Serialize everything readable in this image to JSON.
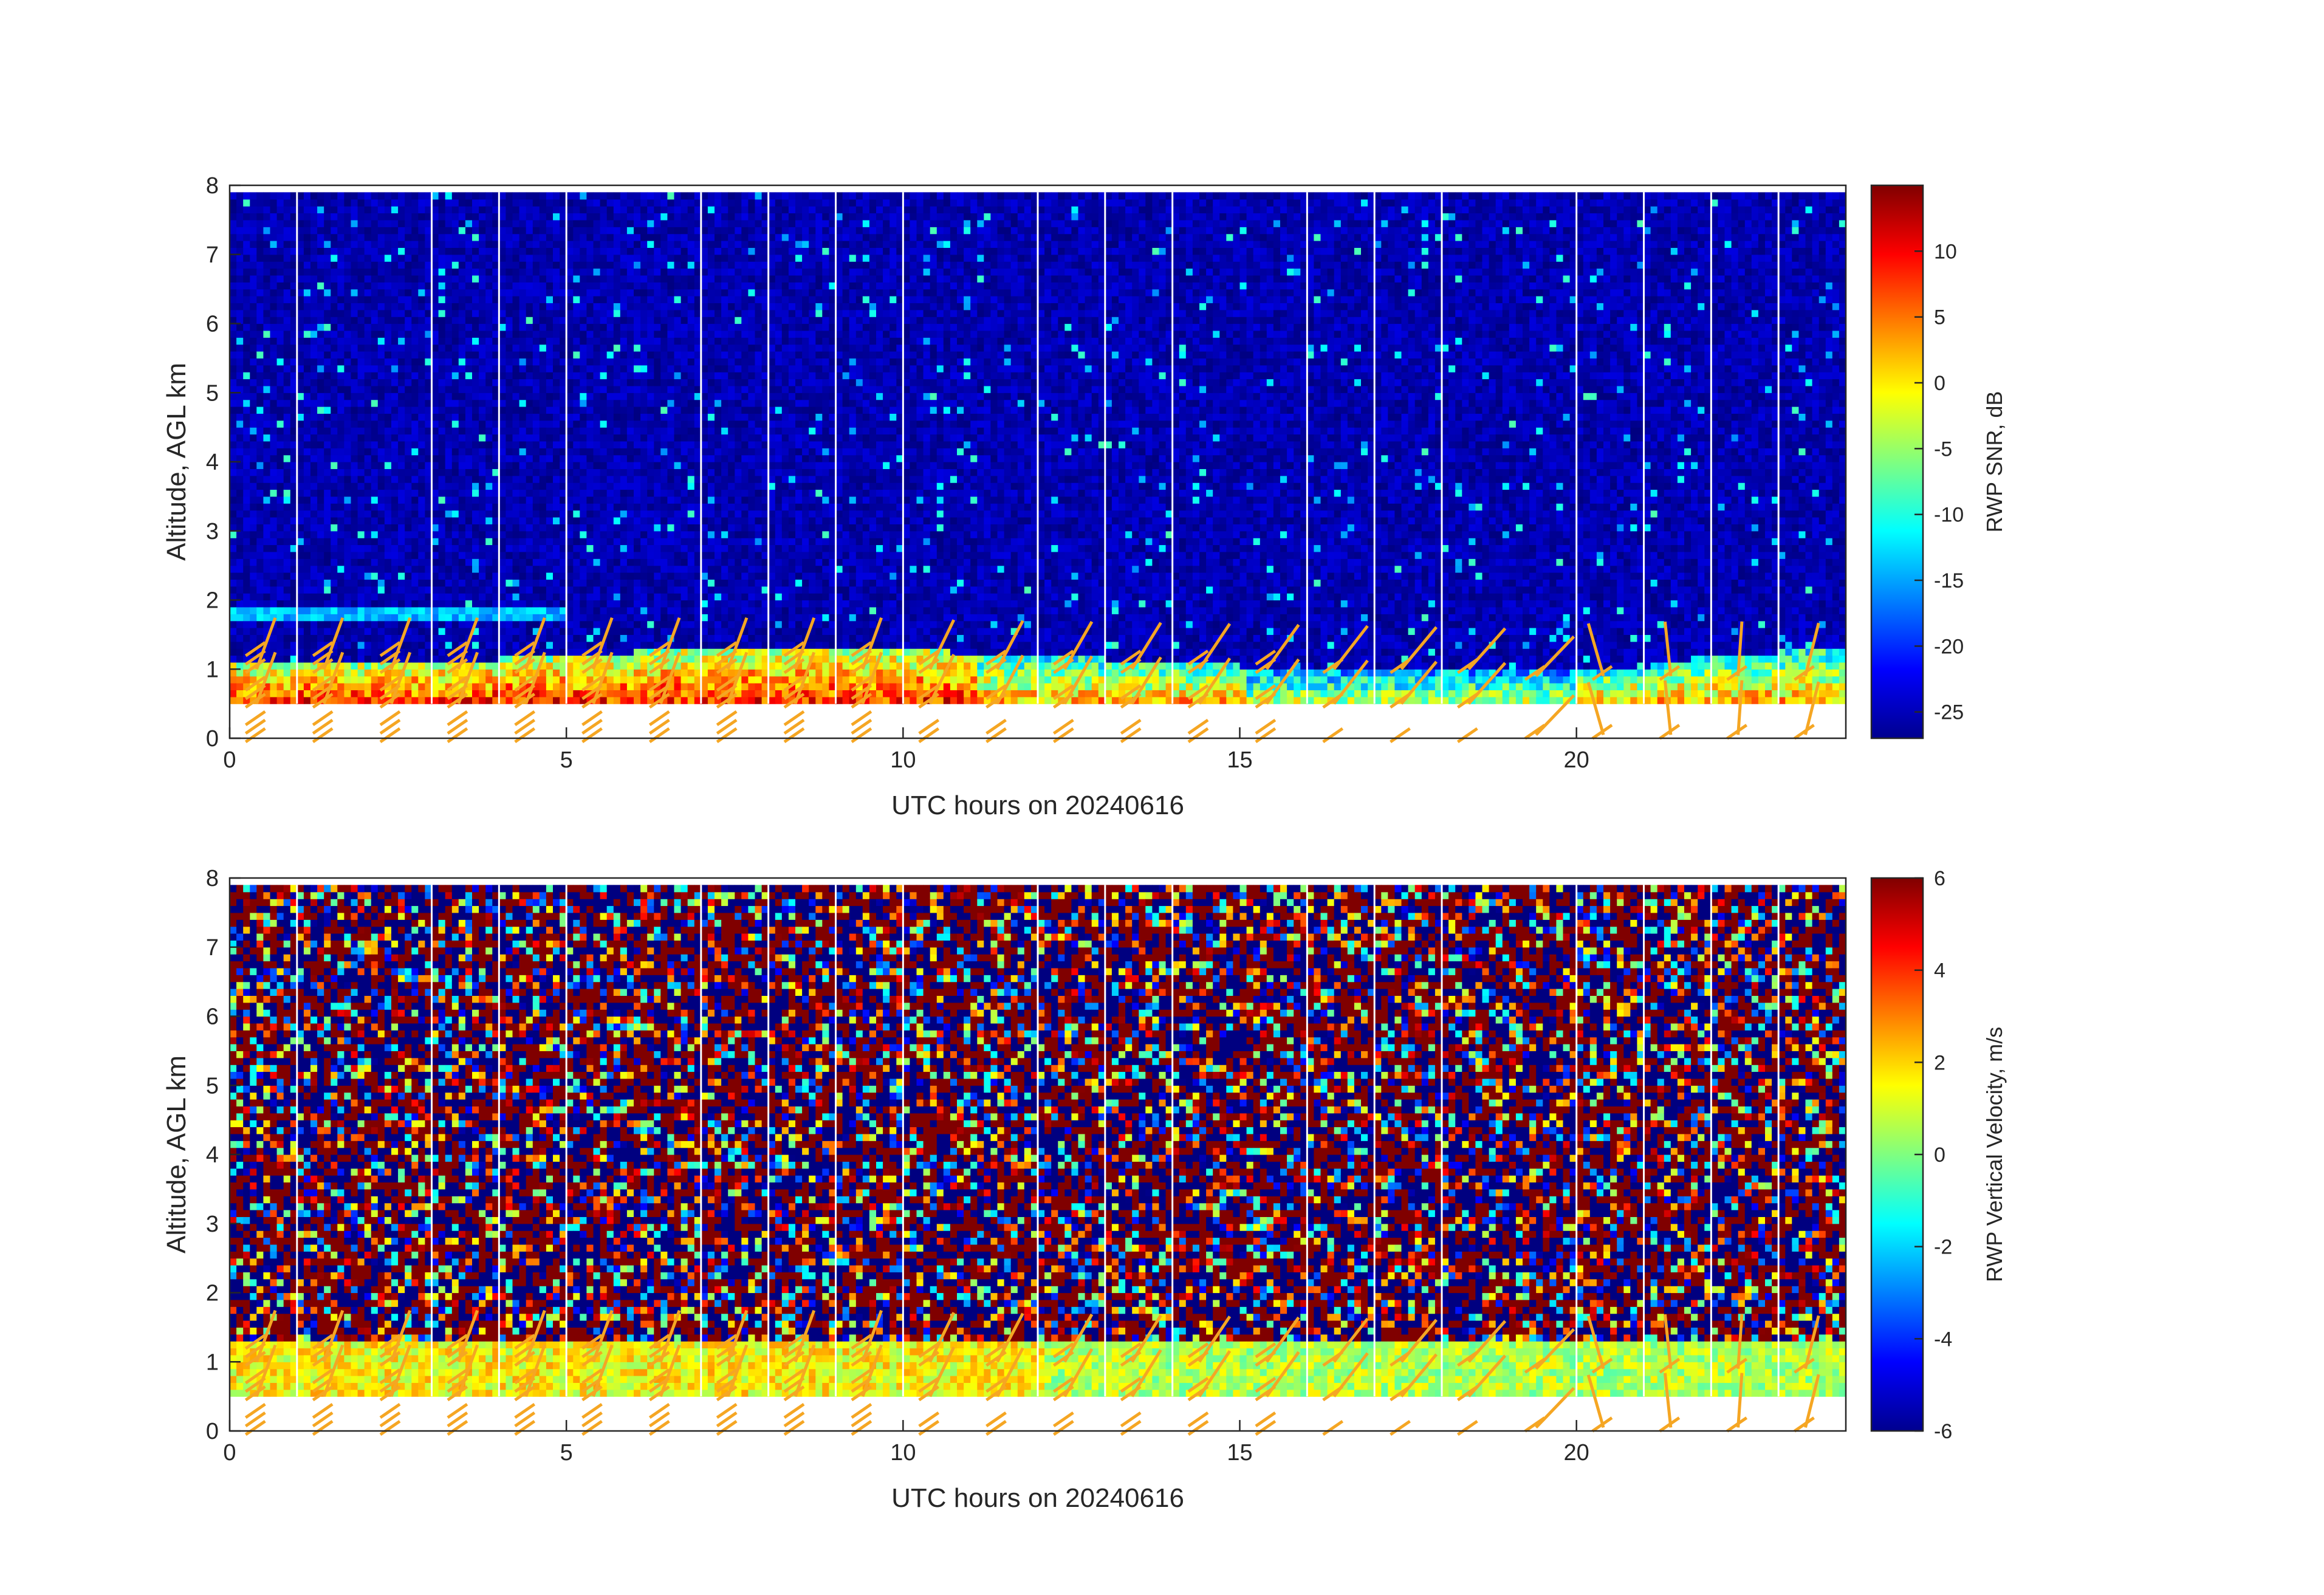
{
  "chart_data": [
    {
      "type": "heatmap",
      "variable": "snr",
      "xlabel": "UTC hours on 20240616",
      "ylabel": "Altitude, AGL km",
      "xlim": [
        0,
        24
      ],
      "ylim": [
        0,
        8
      ],
      "x_ticks": [
        0,
        5,
        10,
        15,
        20
      ],
      "y_ticks": [
        0,
        1,
        2,
        3,
        4,
        5,
        6,
        7,
        8
      ],
      "data_range_y": [
        0.5,
        7.9
      ],
      "colormap": "jet",
      "colorbar": {
        "label": "RWP SNR, dB",
        "range": [
          -27,
          15
        ],
        "ticks": [
          -25,
          -20,
          -15,
          -10,
          -5,
          0,
          5,
          10
        ]
      },
      "gap_hours": [
        1,
        3,
        4,
        5,
        7,
        8,
        9,
        10,
        12,
        13,
        14,
        16,
        17,
        18,
        20,
        21,
        22,
        23
      ],
      "boundary_layer": [
        {
          "x": 0,
          "top": 1.1
        },
        {
          "x": 3,
          "top": 1.1
        },
        {
          "x": 5,
          "top": 1.2
        },
        {
          "x": 8,
          "top": 1.35
        },
        {
          "x": 12,
          "top": 1.2
        },
        {
          "x": 15,
          "top": 1.05
        },
        {
          "x": 18,
          "top": 1.05
        },
        {
          "x": 20.5,
          "top": 0.95
        },
        {
          "x": 22,
          "top": 1.2
        },
        {
          "x": 24,
          "top": 1.3
        }
      ],
      "elevated_layer": {
        "x_start": 0,
        "x_end": 5,
        "altitude": 1.8
      },
      "wind_barbs": "orange"
    },
    {
      "type": "heatmap",
      "variable": "vertical_velocity",
      "xlabel": "UTC hours on 20240616",
      "ylabel": "Altitude, AGL km",
      "xlim": [
        0,
        24
      ],
      "ylim": [
        0,
        8
      ],
      "x_ticks": [
        0,
        5,
        10,
        15,
        20
      ],
      "y_ticks": [
        0,
        1,
        2,
        3,
        4,
        5,
        6,
        7,
        8
      ],
      "data_range_y": [
        0.5,
        7.9
      ],
      "colormap": "jet",
      "colorbar": {
        "label": "RWP Vertical Velocity, m/s",
        "range": [
          -6,
          6
        ],
        "ticks": [
          -6,
          -4,
          -2,
          0,
          2,
          4,
          6
        ]
      },
      "gap_hours": [
        1,
        3,
        4,
        5,
        7,
        8,
        9,
        10,
        12,
        13,
        14,
        16,
        17,
        18,
        20,
        21,
        22,
        23
      ],
      "wind_barbs": "orange"
    }
  ],
  "colors": {
    "barb": "#f5a623",
    "axis": "#262626",
    "gap": "#ffffff"
  }
}
